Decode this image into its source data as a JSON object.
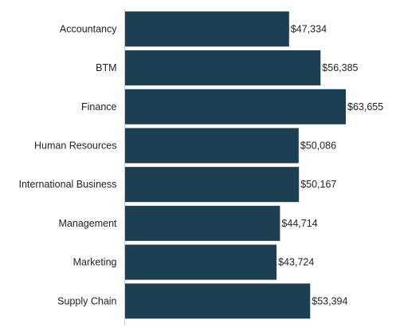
{
  "chart_data": {
    "type": "bar",
    "orientation": "horizontal",
    "categories": [
      "Accountancy",
      "BTM",
      "Finance",
      "Human Resources",
      "International Business",
      "Management",
      "Marketing",
      "Supply Chain"
    ],
    "values": [
      47334,
      56385,
      63655,
      50086,
      50167,
      44714,
      43724,
      53394
    ],
    "value_labels": [
      "$47,334",
      "$56,385",
      "$63,655",
      "$50,086",
      "$50,167",
      "$44,714",
      "$43,724",
      "$53,394"
    ],
    "xlim": [
      0,
      65000
    ],
    "grid": false,
    "legend": "none",
    "bar_color": "#1c3f54"
  }
}
